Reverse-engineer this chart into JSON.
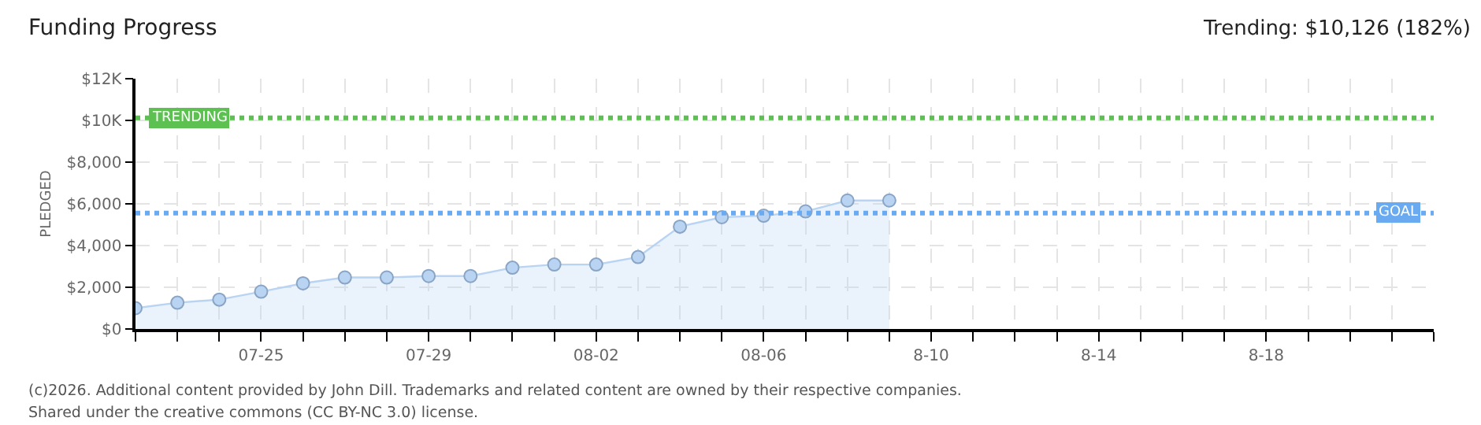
{
  "chart_data": {
    "type": "area",
    "title": "Funding Progress",
    "subtitle": "Trending: $10,126 (182%)",
    "ylabel": "PLEDGED",
    "x": [
      "--07-22",
      "--07-23",
      "--07-24",
      "--07-25",
      "--07-26",
      "--07-27",
      "--07-28",
      "--07-29",
      "--07-30",
      "--07-31",
      "--08-01",
      "--08-02",
      "--08-03",
      "--08-04",
      "--08-05",
      "--08-06",
      "--08-07",
      "--08-08",
      "--08-09"
    ],
    "values": [
      1000,
      1260,
      1410,
      1790,
      2190,
      2470,
      2470,
      2540,
      2540,
      2940,
      3090,
      3090,
      3450,
      4910,
      5360,
      5430,
      5640,
      6160,
      6160
    ],
    "color": "#b9d4f2",
    "marker": "circle",
    "line_style": "solid",
    "grid": true,
    "xlim": [
      "--07-22",
      "--08-22"
    ],
    "xticks": [
      {
        "value": "--07-22",
        "label": null
      },
      {
        "value": "--07-23",
        "label": null
      },
      {
        "value": "--07-24",
        "label": null
      },
      {
        "value": "--07-25",
        "label": "07-25"
      },
      {
        "value": "--07-26",
        "label": null
      },
      {
        "value": "--07-27",
        "label": null
      },
      {
        "value": "--07-28",
        "label": null
      },
      {
        "value": "--07-29",
        "label": "07-29"
      },
      {
        "value": "--07-30",
        "label": null
      },
      {
        "value": "--07-31",
        "label": null
      },
      {
        "value": "--08-01",
        "label": null
      },
      {
        "value": "--08-02",
        "label": "08-02"
      },
      {
        "value": "--08-03",
        "label": null
      },
      {
        "value": "--08-04",
        "label": null
      },
      {
        "value": "--08-05",
        "label": null
      },
      {
        "value": "--08-06",
        "label": "08-06"
      },
      {
        "value": "--08-07",
        "label": null
      },
      {
        "value": "--08-08",
        "label": null
      },
      {
        "value": "--08-09",
        "label": null
      },
      {
        "value": "--08-10",
        "label": "8-10"
      },
      {
        "value": "--08-11",
        "label": null
      },
      {
        "value": "--08-12",
        "label": null
      },
      {
        "value": "--08-13",
        "label": null
      },
      {
        "value": "--08-14",
        "label": "8-14"
      },
      {
        "value": "--08-15",
        "label": null
      },
      {
        "value": "--08-16",
        "label": null
      },
      {
        "value": "--08-17",
        "label": null
      },
      {
        "value": "--08-18",
        "label": "8-18"
      },
      {
        "value": "--08-19",
        "label": null
      },
      {
        "value": "--08-20",
        "label": null
      },
      {
        "value": "--08-21",
        "label": null
      },
      {
        "value": "--08-22",
        "label": null
      }
    ],
    "ylim": [
      0,
      12000
    ],
    "yticks": [
      {
        "value": 0,
        "label": "$0"
      },
      {
        "value": 2000,
        "label": "$2,000"
      },
      {
        "value": 4000,
        "label": "$4,000"
      },
      {
        "value": 6000,
        "label": "$6,000"
      },
      {
        "value": 8000,
        "label": "$8,000"
      },
      {
        "value": 10000,
        "label": "$10K"
      },
      {
        "value": 12000,
        "label": "$12K"
      }
    ],
    "ref_lines": [
      {
        "axis": "y",
        "value": 10126,
        "label": "TRENDING",
        "color": "#5cc151",
        "line_style": "dotted"
      },
      {
        "axis": "y",
        "value": 5560,
        "label": "GOAL",
        "color": "#6aaaf0",
        "line_style": "dotted"
      }
    ],
    "annotations": [
      "(c)2026. Additional content provided by John Dill. Trademarks and related content are owned by their respective companies.",
      "Shared under the creative commons (CC BY-NC 3.0) license."
    ]
  }
}
